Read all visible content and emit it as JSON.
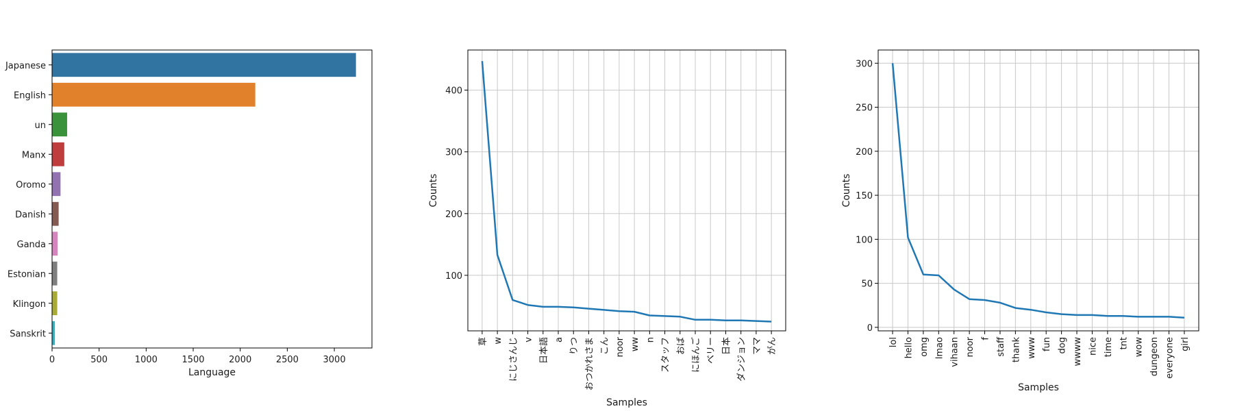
{
  "chart_data": [
    {
      "type": "bar",
      "orientation": "horizontal",
      "categories": [
        "Japanese",
        "English",
        "un",
        "Manx",
        "Oromo",
        "Danish",
        "Ganda",
        "Estonian",
        "Klingon",
        "Sanskrit"
      ],
      "values": [
        3230,
        2160,
        160,
        130,
        90,
        70,
        60,
        55,
        55,
        30
      ],
      "colors": [
        "#3274a1",
        "#e1812c",
        "#3a923a",
        "#c03d3e",
        "#9372b2",
        "#845b53",
        "#d684bd",
        "#7f7f7f",
        "#a9aa35",
        "#2eb1c2"
      ],
      "xlabel": "Language",
      "ylabel": "",
      "xlim": [
        0,
        3400
      ],
      "xticks": [
        0,
        500,
        1000,
        1500,
        2000,
        2500,
        3000
      ],
      "grid": false
    },
    {
      "type": "line",
      "x": [
        "草",
        "w",
        "にじさんじ",
        "v",
        "日本語",
        "a",
        "りつ",
        "おつかれさま",
        "こん",
        "noor",
        "ww",
        "n",
        "スタッフ",
        "おば",
        "にほんご",
        "ベリー",
        "日本",
        "ダンジョン",
        "ママ",
        "がん"
      ],
      "values": [
        447,
        133,
        60,
        52,
        49,
        49,
        48,
        46,
        44,
        42,
        41,
        35,
        34,
        33,
        28,
        28,
        27,
        27,
        26,
        25
      ],
      "color": "#1f77b4",
      "xlabel": "Samples",
      "ylabel": "Counts",
      "ylim": [
        10,
        465
      ],
      "yticks": [
        100,
        200,
        300,
        400
      ],
      "grid": true
    },
    {
      "type": "line",
      "x": [
        "lol",
        "hello",
        "omg",
        "lmao",
        "vihaan",
        "noor",
        "f",
        "staff",
        "thank",
        "www",
        "fun",
        "dog",
        "wwww",
        "nice",
        "time",
        "tnt",
        "wow",
        "dungeon",
        "everyone",
        "girl"
      ],
      "values": [
        300,
        102,
        60,
        59,
        43,
        32,
        31,
        28,
        22,
        20,
        17,
        15,
        14,
        14,
        13,
        13,
        12,
        12,
        12,
        11
      ],
      "color": "#1f77b4",
      "xlabel": "Samples",
      "ylabel": "Counts",
      "ylim": [
        -4,
        315
      ],
      "yticks": [
        0,
        50,
        100,
        150,
        200,
        250,
        300
      ],
      "grid": true
    }
  ]
}
